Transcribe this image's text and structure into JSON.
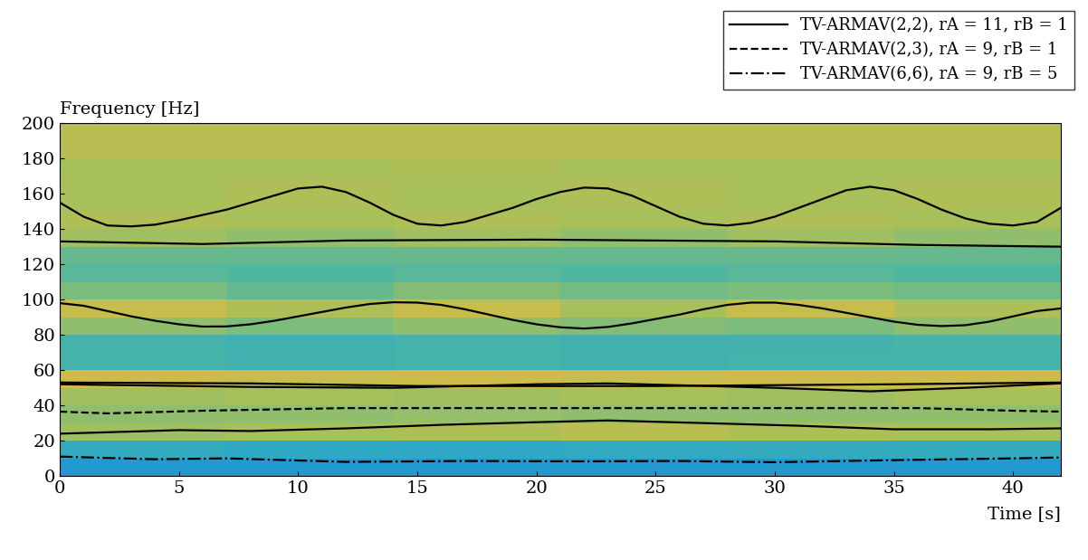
{
  "chart_data": {
    "type": "line",
    "x_label": "Time [s]",
    "y_label": "Frequency [Hz]",
    "xlim": [
      0,
      42
    ],
    "ylim": [
      0,
      200
    ],
    "xticks": [
      0,
      5,
      10,
      15,
      20,
      25,
      30,
      35,
      40
    ],
    "yticks": [
      0,
      20,
      40,
      60,
      80,
      100,
      120,
      140,
      160,
      180,
      200
    ],
    "legend": "upper right",
    "spectrogram": {
      "t_edges": [
        0,
        7,
        14,
        21,
        28,
        35,
        42
      ],
      "f_edges": [
        0,
        10,
        20,
        30,
        40,
        50,
        60,
        70,
        80,
        90,
        100,
        110,
        120,
        130,
        140,
        150,
        160,
        170,
        180,
        190,
        200
      ],
      "color_range": [
        0,
        1
      ],
      "cells": [
        [
          0.1,
          0.1,
          0.1,
          0.1,
          0.1,
          0.1
        ],
        [
          0.25,
          0.22,
          0.22,
          0.24,
          0.25,
          0.25
        ],
        [
          0.58,
          0.6,
          0.62,
          0.65,
          0.62,
          0.6
        ],
        [
          0.55,
          0.55,
          0.56,
          0.55,
          0.55,
          0.55
        ],
        [
          0.58,
          0.6,
          0.58,
          0.6,
          0.58,
          0.6
        ],
        [
          0.7,
          0.68,
          0.7,
          0.68,
          0.7,
          0.7
        ],
        [
          0.35,
          0.33,
          0.35,
          0.33,
          0.35,
          0.35
        ],
        [
          0.35,
          0.32,
          0.35,
          0.33,
          0.34,
          0.36
        ],
        [
          0.55,
          0.5,
          0.55,
          0.52,
          0.5,
          0.55
        ],
        [
          0.68,
          0.62,
          0.68,
          0.6,
          0.68,
          0.62
        ],
        [
          0.5,
          0.45,
          0.52,
          0.48,
          0.5,
          0.48
        ],
        [
          0.42,
          0.4,
          0.42,
          0.4,
          0.42,
          0.4
        ],
        [
          0.45,
          0.45,
          0.45,
          0.45,
          0.45,
          0.45
        ],
        [
          0.58,
          0.55,
          0.58,
          0.55,
          0.58,
          0.55
        ],
        [
          0.62,
          0.6,
          0.62,
          0.6,
          0.62,
          0.6
        ],
        [
          0.6,
          0.62,
          0.6,
          0.62,
          0.6,
          0.62
        ],
        [
          0.6,
          0.62,
          0.6,
          0.62,
          0.6,
          0.62
        ],
        [
          0.6,
          0.6,
          0.62,
          0.6,
          0.6,
          0.6
        ],
        [
          0.65,
          0.65,
          0.65,
          0.65,
          0.65,
          0.65
        ],
        [
          0.65,
          0.65,
          0.65,
          0.65,
          0.65,
          0.65
        ]
      ]
    },
    "series": [
      {
        "name": "TV-ARMAV(2,2), rA = 11, rB = 1",
        "color": "#000000",
        "line_style": "solid",
        "curves": [
          {
            "x": [
              0,
              1,
              2,
              3,
              4,
              5,
              6,
              7,
              8,
              9,
              10,
              11,
              12,
              13,
              14,
              15,
              16,
              17,
              18,
              19,
              20,
              21,
              22,
              23,
              24,
              25,
              26,
              27,
              28,
              29,
              30,
              31,
              32,
              33,
              34,
              35,
              36,
              37,
              38,
              39,
              40,
              41,
              42
            ],
            "values": [
              155,
              147,
              142,
              141.5,
              142.5,
              145,
              148,
              151,
              155,
              159,
              163,
              164,
              161,
              155,
              148,
              143,
              142,
              144,
              148,
              152,
              157,
              161,
              163.5,
              163,
              159,
              153,
              147,
              143,
              142,
              143.5,
              147,
              152,
              157,
              162,
              164,
              162,
              157,
              151,
              146,
              143,
              142,
              144,
              152
            ]
          },
          {
            "x": [
              0,
              6,
              12,
              20,
              30,
              36,
              42
            ],
            "values": [
              133,
              131.5,
              133.5,
              134,
              133,
              131,
              130
            ]
          },
          {
            "x": [
              0,
              1,
              2,
              3,
              4,
              5,
              6,
              7,
              8,
              9,
              10,
              11,
              12,
              13,
              14,
              15,
              16,
              17,
              18,
              19,
              20,
              21,
              22,
              23,
              24,
              25,
              26,
              27,
              28,
              29,
              30,
              31,
              32,
              33,
              34,
              35,
              36,
              37,
              38,
              39,
              40,
              41,
              42
            ],
            "values": [
              98,
              96.5,
              93.5,
              90.5,
              88,
              86,
              84.7,
              84.8,
              86,
              88,
              90.5,
              93,
              95.5,
              97.5,
              98.5,
              98.3,
              97,
              94.5,
              91.5,
              88.5,
              86,
              84.3,
              83.6,
              84.5,
              86.5,
              89,
              91.5,
              94.5,
              97,
              98.3,
              98.3,
              97,
              95,
              92.5,
              90,
              87.5,
              85.7,
              85,
              85.5,
              87.5,
              90.5,
              93.5,
              95
            ]
          },
          {
            "x": [
              0,
              8,
              15,
              25,
              35,
              42
            ],
            "values": [
              53,
              52.5,
              51,
              51,
              52,
              53
            ]
          },
          {
            "x": [
              0,
              8,
              14,
              20,
              23,
              30,
              34,
              38,
              42
            ],
            "values": [
              52,
              50.5,
              50,
              52,
              52.5,
              50,
              48,
              50,
              52.5
            ]
          },
          {
            "x": [
              0,
              5,
              8,
              12,
              16,
              20,
              23,
              27,
              31,
              35,
              39,
              42
            ],
            "values": [
              24,
              26,
              25.5,
              27,
              29,
              30.5,
              31.5,
              30,
              28.5,
              26.5,
              26.5,
              27
            ]
          }
        ]
      },
      {
        "name": "TV-ARMAV(2,3), rA = 9, rB = 1",
        "color": "#000000",
        "line_style": "dashed",
        "curves": [
          {
            "x": [
              0,
              2,
              6,
              12,
              25,
              36,
              40,
              42
            ],
            "values": [
              36.5,
              35.5,
              37,
              38.5,
              38.5,
              38.5,
              37,
              36.5
            ]
          }
        ]
      },
      {
        "name": "TV-ARMAV(6,6), rA = 9, rB = 5",
        "color": "#000000",
        "line_style": "dashdot",
        "curves": [
          {
            "x": [
              0,
              4,
              7,
              12,
              17,
              22,
              26,
              30,
              35,
              40,
              42
            ],
            "values": [
              11,
              9.5,
              10,
              8,
              8.5,
              8.3,
              8.5,
              7.8,
              9,
              10,
              10.5
            ]
          }
        ]
      }
    ]
  }
}
